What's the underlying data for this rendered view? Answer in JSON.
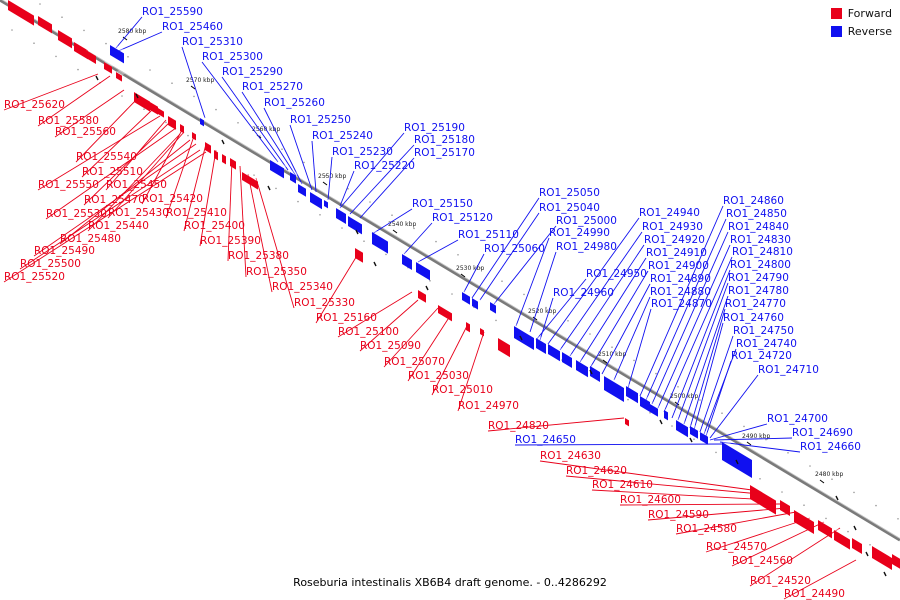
{
  "colors": {
    "forward": "#e8001a",
    "reverse": "#1010f0",
    "backbone": "#7a7a7a"
  },
  "legend": {
    "forward_label": "Forward",
    "reverse_label": "Reverse"
  },
  "caption": "Roseburia intestinalis XB6B4 draft genome. - 0..4286292",
  "ticks": [
    "2580 kbp",
    "2570 kbp",
    "2560 kbp",
    "2550 kbp",
    "2540 kbp",
    "2530 kbp",
    "2520 kbp",
    "2510 kbp",
    "2500 kbp",
    "2490 kbp",
    "2480 kbp"
  ],
  "reverse_labels": [
    "RO1_25590",
    "RO1_25460",
    "RO1_25310",
    "RO1_25300",
    "RO1_25290",
    "RO1_25270",
    "RO1_25260",
    "RO1_25250",
    "RO1_25240",
    "RO1_25230",
    "RO1_25220",
    "RO1_25190",
    "RO1_25180",
    "RO1_25170",
    "RO1_25150",
    "RO1_25120",
    "RO1_25110",
    "RO1_25060",
    "RO1_25050",
    "RO1_25040",
    "RO1_25000",
    "RO1_24990",
    "RO1_24980",
    "RO1_24950",
    "RO1_24960",
    "RO1_24940",
    "RO1_24930",
    "RO1_24920",
    "RO1_24910",
    "RO1_24900",
    "RO1_24890",
    "RO1_24880",
    "RO1_24870",
    "RO1_24860",
    "RO1_24850",
    "RO1_24840",
    "RO1_24830",
    "RO1_24810",
    "RO1_24800",
    "RO1_24790",
    "RO1_24780",
    "RO1_24770",
    "RO1_24760",
    "RO1_24750",
    "RO1_24740",
    "RO1_24720",
    "RO1_24710",
    "RO1_24700",
    "RO1_24690",
    "RO1_24660",
    "RO1_24650"
  ],
  "forward_labels": [
    "RO1_25620",
    "RO1_25580",
    "RO1_25560",
    "RO1_25540",
    "RO1_25510",
    "RO1_25550",
    "RO1_25450",
    "RO1_25470",
    "RO1_25420",
    "RO1_25530",
    "RO1_25430",
    "RO1_25410",
    "RO1_25440",
    "RO1_25400",
    "RO1_25480",
    "RO1_25390",
    "RO1_25490",
    "RO1_25380",
    "RO1_25500",
    "RO1_25350",
    "RO1_25520",
    "RO1_25340",
    "RO1_25330",
    "RO1_25160",
    "RO1_25100",
    "RO1_25090",
    "RO1_25070",
    "RO1_25030",
    "RO1_25010",
    "RO1_24970",
    "RO1_24820",
    "RO1_24630",
    "RO1_24620",
    "RO1_24610",
    "RO1_24600",
    "RO1_24590",
    "RO1_24580",
    "RO1_24570",
    "RO1_24560",
    "RO1_24520",
    "RO1_24490"
  ]
}
